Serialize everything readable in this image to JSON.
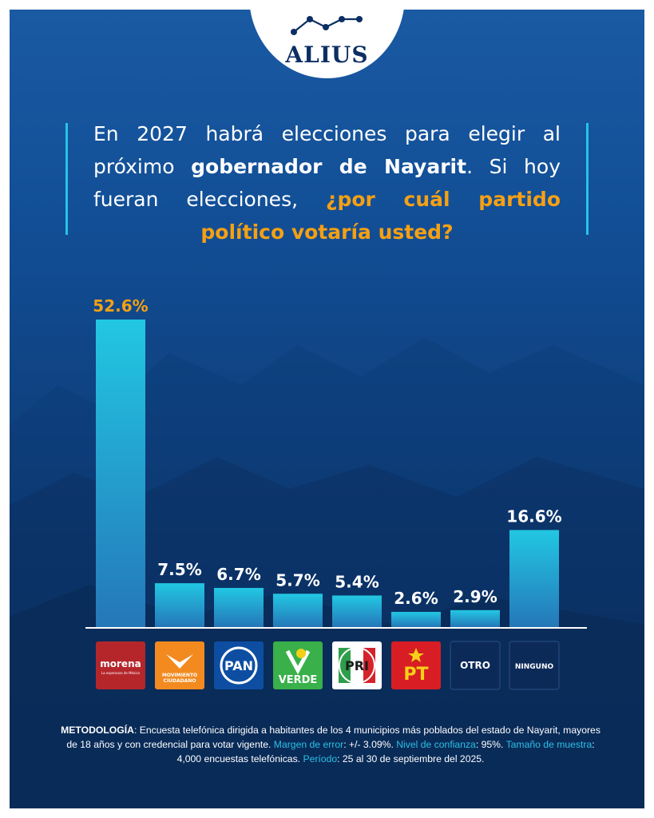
{
  "brand": {
    "name": "ALIUS"
  },
  "question": {
    "part1": "En 2027 habrá elecciones para elegir al próximo ",
    "bold": "gobernador de Nayarit",
    "part2": ". Si hoy fueran elecciones, ",
    "highlight": "¿por cuál partido político votaría usted?"
  },
  "colors": {
    "bar": "#22c7e3",
    "bar_bottom": "#2577b8",
    "highlight": "#f5a014",
    "accent": "#28c3e6"
  },
  "chart_data": {
    "type": "bar",
    "categories": [
      "morena",
      "MOVIMIENTO CIUDADANO",
      "PAN",
      "VERDE",
      "PRI",
      "PT",
      "OTRO",
      "NINGUNO"
    ],
    "values": [
      52.6,
      7.5,
      6.7,
      5.7,
      5.4,
      2.6,
      2.9,
      16.6
    ],
    "data_labels": [
      "52.6%",
      "7.5%",
      "6.7%",
      "5.7%",
      "5.4%",
      "2.6%",
      "2.9%",
      "16.6%"
    ],
    "highlight_index": 0,
    "title": "",
    "xlabel": "",
    "ylabel": "",
    "grid": false,
    "legend": "none",
    "logos": [
      {
        "name": "morena",
        "text": "morena",
        "sub": "La esperanza de México",
        "bg": "#b5262b",
        "fg": "#ffffff"
      },
      {
        "name": "movimiento-ciudadano",
        "text": "MOVIMIENTO CIUDADANO",
        "bg": "#f28a1f",
        "fg": "#ffffff"
      },
      {
        "name": "pan",
        "text": "PAN",
        "bg": "#0d4ea3",
        "fg": "#ffffff"
      },
      {
        "name": "verde",
        "text": "VERDE",
        "bg": "#39b04a",
        "fg": "#ffffff"
      },
      {
        "name": "pri",
        "text": "PRI",
        "bg": "#ffffff",
        "fg": "#1b1b1b"
      },
      {
        "name": "pt",
        "text": "PT",
        "bg": "#d81e24",
        "fg": "#f7d117"
      },
      {
        "name": "otro",
        "text": "OTRO",
        "bg": "#0c2a58",
        "fg": "#ffffff"
      },
      {
        "name": "ninguno",
        "text": "NINGUNO",
        "bg": "#0c2a58",
        "fg": "#ffffff"
      }
    ]
  },
  "methodology": {
    "k1": "METODOLOGÍA",
    "t1": ": Encuesta telefónica dirigida a habitantes de los 4 municipios más poblados del estado de Nayarit, mayores de 18 años y con credencial para votar vigente. ",
    "k2": "Margen de error",
    "t2": ": +/- 3.09%. ",
    "k3": "Nivel de confianza",
    "t3": ": 95%. ",
    "k4": "Tamaño de muestra",
    "t4": ": 4,000 encuestas telefónicas. ",
    "k5": "Período",
    "t5": ": 25 al 30 de septiembre  del 2025."
  }
}
